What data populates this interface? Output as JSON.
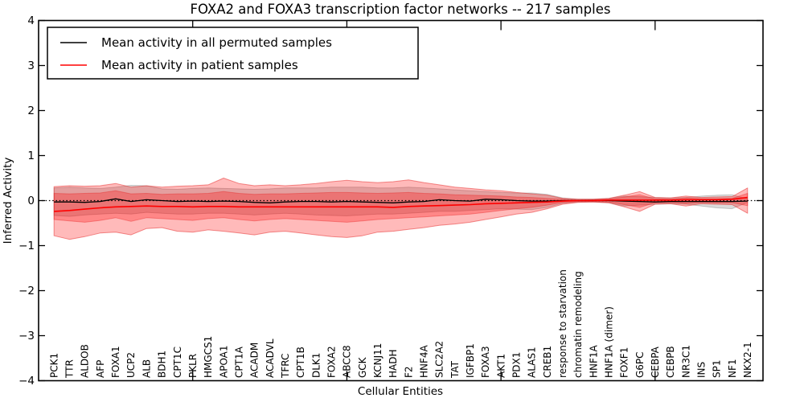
{
  "title": "FOXA2 and FOXA3 transcription factor networks -- 217 samples",
  "axes": {
    "ylabel": "Inferred Activity",
    "xlabel": "Cellular Entities",
    "ytick_labels": [
      "4",
      "3",
      "2",
      "1",
      "0",
      "−1",
      "−2",
      "−3",
      "−4"
    ]
  },
  "legend": {
    "entries": [
      {
        "label": "Mean activity in all permuted samples",
        "color": "#000000"
      },
      {
        "label": "Mean activity in patient samples",
        "color": "#ff0000"
      }
    ]
  },
  "chart_data": {
    "type": "line",
    "title": "FOXA2 and FOXA3 transcription factor networks -- 217 samples",
    "xlabel": "Cellular Entities",
    "ylabel": "Inferred Activity",
    "ylim": [
      -4,
      4
    ],
    "ytick_values": [
      4,
      3,
      2,
      1,
      0,
      -1,
      -2,
      -3,
      -4
    ],
    "xtick_index": [
      9,
      19,
      29,
      39
    ],
    "grid": false,
    "zero_line": 0,
    "legend_position": "upper left",
    "categories": [
      "PCK1",
      "TTR",
      "ALDOB",
      "AFP",
      "FOXA1",
      "UCP2",
      "ALB",
      "BDH1",
      "CPT1C",
      "PKLR",
      "HMGCS1",
      "APOA1",
      "CPT1A",
      "ACADM",
      "ACADVL",
      "TFRC",
      "CPT1B",
      "DLK1",
      "FOXA2",
      "ABCC8",
      "GCK",
      "KCNJ11",
      "HADH",
      "F2",
      "HNF4A",
      "SLC2A2",
      "TAT",
      "IGFBP1",
      "FOXA3",
      "AKT1",
      "PDX1",
      "ALAS1",
      "CREB1",
      "response to starvation",
      "chromatin remodeling",
      "HNF1A",
      "HNF1A (dimer)",
      "FOXF1",
      "G6PC",
      "CEBPA",
      "CEBPB",
      "NR3C1",
      "INS",
      "SP1",
      "NF1",
      "NKX2-1"
    ],
    "series": [
      {
        "name": "Mean activity in all permuted samples",
        "color": "#000000",
        "values": [
          -0.03,
          -0.03,
          -0.04,
          -0.02,
          0.04,
          -0.02,
          0.02,
          0.0,
          -0.02,
          -0.01,
          -0.02,
          -0.01,
          -0.02,
          -0.04,
          -0.05,
          -0.03,
          -0.02,
          -0.02,
          -0.03,
          -0.02,
          -0.03,
          -0.04,
          -0.05,
          -0.03,
          -0.02,
          0.02,
          0.0,
          -0.01,
          0.03,
          0.02,
          0.0,
          -0.01,
          -0.01,
          0.0,
          0.0,
          0.0,
          0.0,
          -0.01,
          -0.02,
          -0.03,
          -0.02,
          -0.02,
          -0.02,
          -0.02,
          -0.02,
          -0.01
        ]
      },
      {
        "name": "Mean activity in patient samples",
        "color": "#ff0000",
        "values": [
          -0.24,
          -0.22,
          -0.19,
          -0.16,
          -0.14,
          -0.13,
          -0.12,
          -0.13,
          -0.13,
          -0.14,
          -0.13,
          -0.13,
          -0.14,
          -0.14,
          -0.14,
          -0.14,
          -0.14,
          -0.14,
          -0.14,
          -0.14,
          -0.14,
          -0.14,
          -0.15,
          -0.13,
          -0.12,
          -0.11,
          -0.1,
          -0.09,
          -0.07,
          -0.06,
          -0.05,
          -0.04,
          -0.03,
          -0.01,
          0.0,
          0.0,
          0.01,
          0.01,
          0.01,
          0.01,
          0.01,
          0.02,
          0.02,
          0.02,
          0.03,
          0.07
        ]
      }
    ],
    "bands": [
      {
        "name": "permuted-std-band",
        "fill": "rgba(0,0,0,0.14)",
        "edge": "rgba(0,0,0,0.18)",
        "upper": [
          0.28,
          0.3,
          0.28,
          0.27,
          0.3,
          0.34,
          0.33,
          0.26,
          0.25,
          0.27,
          0.28,
          0.27,
          0.26,
          0.25,
          0.26,
          0.28,
          0.28,
          0.28,
          0.3,
          0.3,
          0.3,
          0.28,
          0.28,
          0.3,
          0.28,
          0.26,
          0.24,
          0.22,
          0.2,
          0.18,
          0.17,
          0.17,
          0.14,
          0.06,
          0.03,
          0.03,
          0.05,
          0.1,
          0.09,
          0.07,
          0.06,
          0.07,
          0.1,
          0.12,
          0.13,
          0.04
        ],
        "lower": [
          -0.33,
          -0.35,
          -0.32,
          -0.3,
          -0.28,
          -0.3,
          -0.26,
          -0.28,
          -0.3,
          -0.3,
          -0.28,
          -0.28,
          -0.3,
          -0.32,
          -0.3,
          -0.28,
          -0.3,
          -0.32,
          -0.33,
          -0.34,
          -0.32,
          -0.3,
          -0.3,
          -0.28,
          -0.26,
          -0.24,
          -0.24,
          -0.22,
          -0.2,
          -0.18,
          -0.19,
          -0.2,
          -0.15,
          -0.06,
          -0.03,
          -0.03,
          -0.05,
          -0.12,
          -0.1,
          -0.08,
          -0.07,
          -0.08,
          -0.12,
          -0.16,
          -0.18,
          -0.04
        ]
      },
      {
        "name": "patient-outer-band",
        "fill": "rgba(255,0,0,0.27)",
        "edge": "rgba(229,36,36,0.5)",
        "upper": [
          0.31,
          0.33,
          0.32,
          0.33,
          0.38,
          0.3,
          0.33,
          0.3,
          0.32,
          0.33,
          0.35,
          0.5,
          0.38,
          0.33,
          0.35,
          0.33,
          0.35,
          0.38,
          0.42,
          0.45,
          0.42,
          0.4,
          0.42,
          0.46,
          0.4,
          0.35,
          0.3,
          0.27,
          0.24,
          0.22,
          0.18,
          0.15,
          0.12,
          0.05,
          0.03,
          0.03,
          0.05,
          0.12,
          0.2,
          0.07,
          0.06,
          0.1,
          0.07,
          0.08,
          0.09,
          0.28
        ],
        "lower": [
          -0.78,
          -0.86,
          -0.8,
          -0.72,
          -0.7,
          -0.76,
          -0.62,
          -0.6,
          -0.68,
          -0.7,
          -0.65,
          -0.68,
          -0.72,
          -0.76,
          -0.7,
          -0.68,
          -0.72,
          -0.76,
          -0.8,
          -0.82,
          -0.78,
          -0.7,
          -0.68,
          -0.64,
          -0.6,
          -0.55,
          -0.52,
          -0.48,
          -0.42,
          -0.36,
          -0.3,
          -0.26,
          -0.18,
          -0.08,
          -0.04,
          -0.03,
          -0.05,
          -0.14,
          -0.24,
          -0.08,
          -0.07,
          -0.12,
          -0.07,
          -0.08,
          -0.09,
          -0.28
        ]
      },
      {
        "name": "patient-inner-band",
        "fill": "rgba(255,0,0,0.27)",
        "edge": "rgba(229,36,36,0.4)",
        "upper": [
          0.16,
          0.15,
          0.16,
          0.17,
          0.22,
          0.15,
          0.16,
          0.14,
          0.15,
          0.15,
          0.16,
          0.2,
          0.16,
          0.14,
          0.15,
          0.15,
          0.16,
          0.17,
          0.18,
          0.18,
          0.17,
          0.16,
          0.17,
          0.18,
          0.16,
          0.15,
          0.13,
          0.12,
          0.11,
          0.1,
          0.08,
          0.07,
          0.05,
          0.03,
          0.01,
          0.02,
          0.03,
          0.08,
          0.13,
          0.04,
          0.03,
          0.06,
          0.04,
          0.04,
          0.05,
          0.16
        ],
        "lower": [
          -0.42,
          -0.45,
          -0.48,
          -0.44,
          -0.38,
          -0.46,
          -0.38,
          -0.4,
          -0.42,
          -0.44,
          -0.4,
          -0.38,
          -0.42,
          -0.45,
          -0.42,
          -0.4,
          -0.42,
          -0.44,
          -0.46,
          -0.48,
          -0.45,
          -0.42,
          -0.4,
          -0.38,
          -0.36,
          -0.34,
          -0.32,
          -0.3,
          -0.26,
          -0.22,
          -0.18,
          -0.15,
          -0.1,
          -0.04,
          -0.02,
          -0.02,
          -0.03,
          -0.09,
          -0.15,
          -0.05,
          -0.04,
          -0.07,
          -0.04,
          -0.05,
          -0.05,
          -0.11
        ]
      }
    ]
  }
}
